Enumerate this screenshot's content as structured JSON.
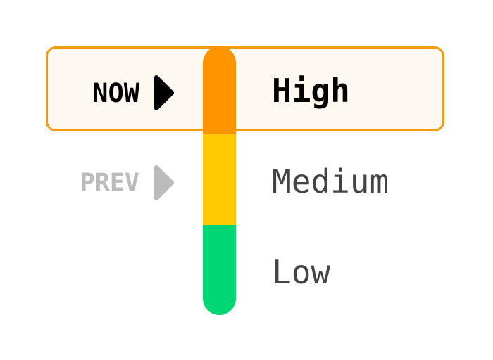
{
  "levels": [
    {
      "label": "High",
      "color": "#ff9400"
    },
    {
      "label": "Medium",
      "color": "#ffc800"
    },
    {
      "label": "Low",
      "color": "#00d673"
    }
  ],
  "current": {
    "marker": "NOW",
    "level": "High",
    "highlight_color": "#f59a0c",
    "icon": "triangle-right-icon"
  },
  "previous": {
    "marker": "PREV",
    "level": "Medium",
    "icon": "triangle-right-icon"
  }
}
